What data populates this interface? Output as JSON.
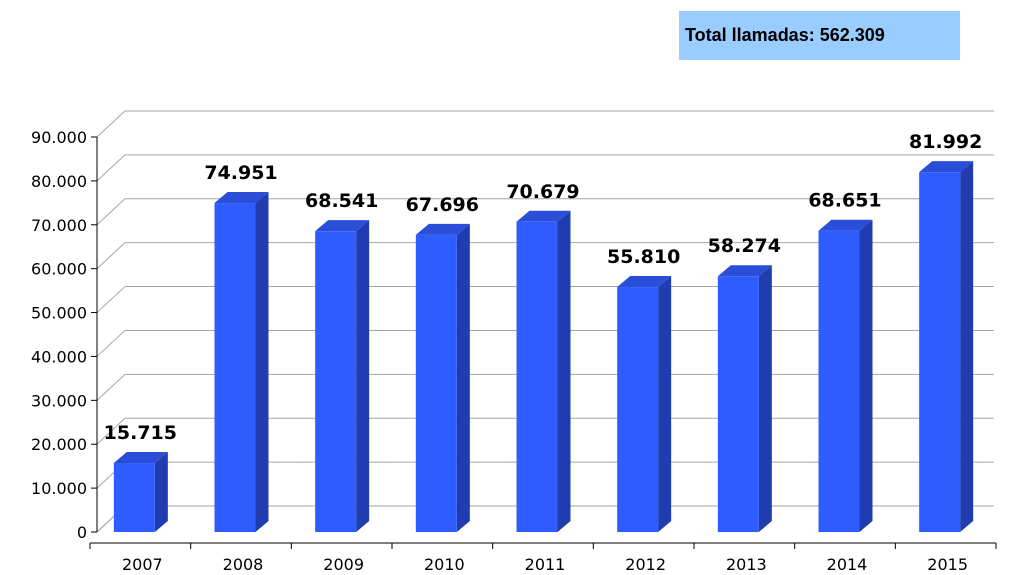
{
  "total_label": "Total llamadas: 562.309",
  "colors": {
    "bar_front": "#2f5cff",
    "bar_side": "#1f3cb0",
    "bar_top": "#2a4ed8",
    "grid": "#a6a6a6",
    "total_box": "#99ccff"
  },
  "chart_data": {
    "type": "bar",
    "categories": [
      "2007",
      "2008",
      "2009",
      "2010",
      "2011",
      "2012",
      "2013",
      "2014",
      "2015"
    ],
    "values": [
      15715,
      74951,
      68541,
      67696,
      70679,
      55810,
      58274,
      68651,
      81992
    ],
    "value_labels": [
      "15.715",
      "74.951",
      "68.541",
      "67.696",
      "70.679",
      "55.810",
      "58.274",
      "68.651",
      "81.992"
    ],
    "y_ticks": [
      "0",
      "10.000",
      "20.000",
      "30.000",
      "40.000",
      "50.000",
      "60.000",
      "70.000",
      "80.000",
      "90.000"
    ],
    "ylim": [
      0,
      90000
    ],
    "grid": true,
    "style": "3d-column"
  }
}
